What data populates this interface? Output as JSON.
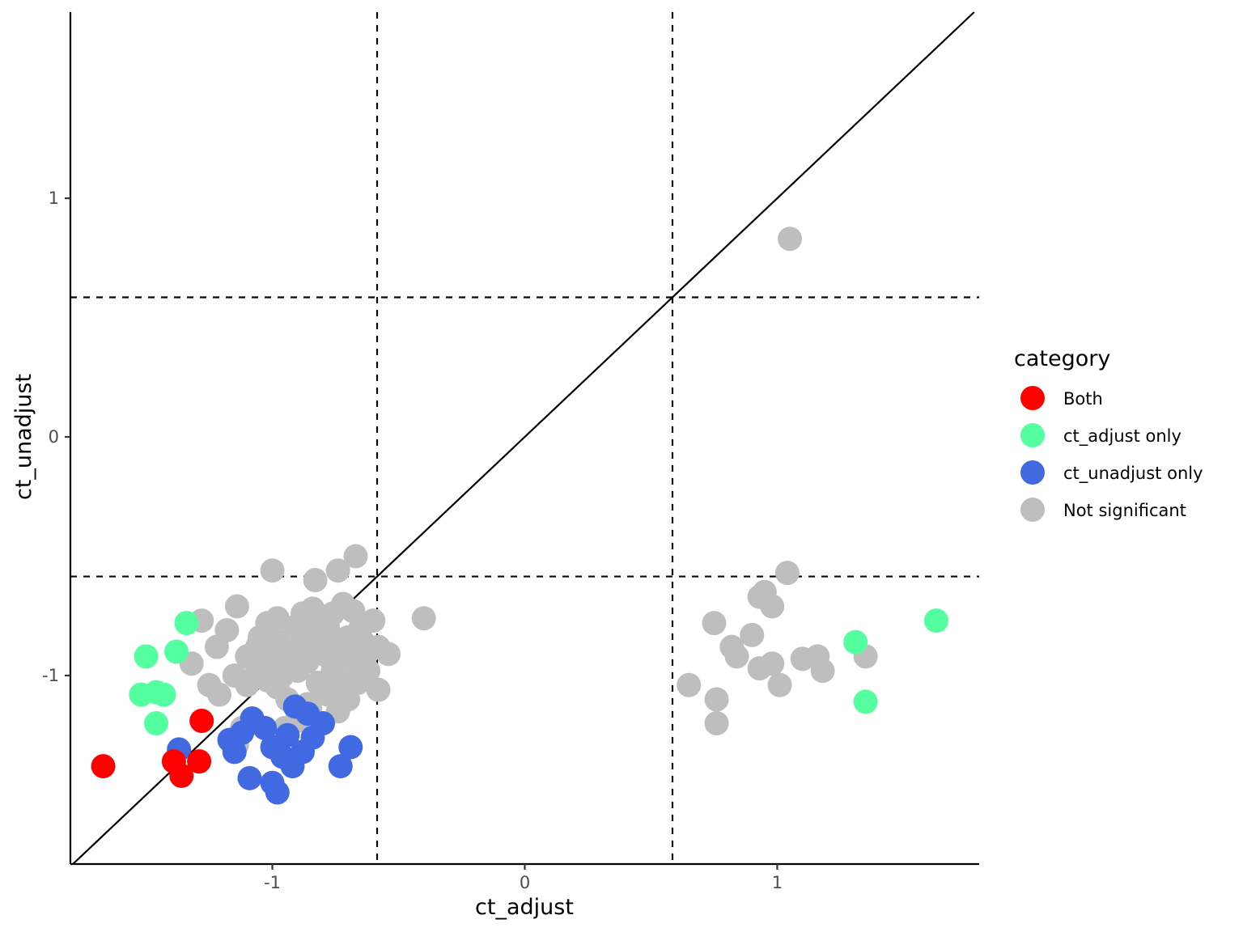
{
  "chart_data": {
    "type": "scatter",
    "xlabel": "ct_adjust",
    "ylabel": "ct_unadjust",
    "xlim": [
      -1.8,
      1.8
    ],
    "ylim": [
      -1.79,
      1.78
    ],
    "x_ticks": [
      -1,
      0,
      1
    ],
    "x_tick_labels": [
      "-1",
      "0",
      "1"
    ],
    "y_ticks": [
      -1,
      0,
      1
    ],
    "y_tick_labels": [
      "-1",
      "0",
      "1"
    ],
    "grid": false,
    "vlines": [
      -0.585,
      0.585
    ],
    "hlines": [
      -0.585,
      0.585
    ],
    "diagonal": "y = x",
    "legend": {
      "title": "category",
      "placement": "right",
      "entries": [
        {
          "name": "Both",
          "color": "#FF0000"
        },
        {
          "name": "ct_adjust only",
          "color": "#54FF9F"
        },
        {
          "name": "ct_unadjust only",
          "color": "#4169E1"
        },
        {
          "name": "Not significant",
          "color": "#BEBEBE"
        }
      ]
    },
    "series": [
      {
        "name": "Not significant",
        "color": "#BEBEBE",
        "points": [
          [
            -1.0,
            -0.56
          ],
          [
            -0.83,
            -0.6
          ],
          [
            -0.74,
            -0.56
          ],
          [
            -0.67,
            -0.5
          ],
          [
            -1.14,
            -0.71
          ],
          [
            -1.28,
            -0.77
          ],
          [
            -1.22,
            -0.88
          ],
          [
            -1.18,
            -0.81
          ],
          [
            -1.32,
            -0.95
          ],
          [
            -1.25,
            -1.04
          ],
          [
            -1.21,
            -1.08
          ],
          [
            -1.15,
            -1.0
          ],
          [
            -1.1,
            -0.92
          ],
          [
            -1.05,
            -0.84
          ],
          [
            -1.02,
            -0.78
          ],
          [
            -0.98,
            -0.76
          ],
          [
            -0.92,
            -0.8
          ],
          [
            -0.88,
            -0.74
          ],
          [
            -0.84,
            -0.72
          ],
          [
            -0.8,
            -0.78
          ],
          [
            -0.76,
            -0.74
          ],
          [
            -0.72,
            -0.7
          ],
          [
            -0.68,
            -0.73
          ],
          [
            -0.65,
            -0.8
          ],
          [
            -0.6,
            -0.77
          ],
          [
            -0.58,
            -0.88
          ],
          [
            -0.54,
            -0.91
          ],
          [
            -0.4,
            -0.76
          ],
          [
            -0.58,
            -1.06
          ],
          [
            -0.62,
            -0.98
          ],
          [
            -0.66,
            -1.03
          ],
          [
            -0.7,
            -1.1
          ],
          [
            -0.74,
            -1.15
          ],
          [
            -0.78,
            -1.08
          ],
          [
            -0.82,
            -1.03
          ],
          [
            -0.86,
            -1.12
          ],
          [
            -0.9,
            -1.16
          ],
          [
            -0.94,
            -1.1
          ],
          [
            -0.98,
            -1.05
          ],
          [
            -1.02,
            -1.02
          ],
          [
            -1.06,
            -0.97
          ],
          [
            -1.1,
            -1.04
          ],
          [
            -1.08,
            -1.18
          ],
          [
            -1.12,
            -1.22
          ],
          [
            -1.14,
            -1.29
          ],
          [
            -0.95,
            -1.22
          ],
          [
            -0.9,
            -1.19
          ],
          [
            -0.85,
            -1.14
          ],
          [
            -0.8,
            -1.2
          ],
          [
            -0.78,
            -0.92
          ],
          [
            -0.82,
            -0.88
          ],
          [
            -0.86,
            -0.94
          ],
          [
            -0.9,
            -0.98
          ],
          [
            -0.94,
            -0.9
          ],
          [
            -0.98,
            -0.86
          ],
          [
            -1.02,
            -0.92
          ],
          [
            -1.06,
            -0.88
          ],
          [
            -0.74,
            -0.86
          ],
          [
            -0.7,
            -0.92
          ],
          [
            -0.66,
            -0.96
          ],
          [
            -0.62,
            -0.9
          ],
          [
            -0.76,
            -0.98
          ],
          [
            -0.72,
            -1.02
          ],
          [
            -0.84,
            -0.82
          ],
          [
            -0.88,
            -0.86
          ],
          [
            -0.92,
            -0.93
          ],
          [
            -0.96,
            -0.97
          ],
          [
            -1.0,
            -0.95
          ],
          [
            -1.04,
            -1.0
          ],
          [
            -0.96,
            -1.0
          ],
          [
            -0.78,
            -0.8
          ],
          [
            -0.7,
            -0.84
          ],
          [
            -0.64,
            -0.86
          ],
          [
            1.05,
            0.83
          ],
          [
            1.04,
            -0.57
          ],
          [
            0.95,
            -0.65
          ],
          [
            0.93,
            -0.67
          ],
          [
            0.98,
            -0.71
          ],
          [
            0.75,
            -0.78
          ],
          [
            0.9,
            -0.83
          ],
          [
            0.82,
            -0.88
          ],
          [
            0.84,
            -0.92
          ],
          [
            0.93,
            -0.97
          ],
          [
            0.98,
            -0.95
          ],
          [
            1.1,
            -0.93
          ],
          [
            1.16,
            -0.92
          ],
          [
            1.18,
            -0.98
          ],
          [
            1.35,
            -0.92
          ],
          [
            0.65,
            -1.04
          ],
          [
            1.01,
            -1.04
          ],
          [
            0.76,
            -1.1
          ],
          [
            0.76,
            -1.2
          ]
        ]
      },
      {
        "name": "ct_unadjust only",
        "color": "#4169E1",
        "points": [
          [
            -1.17,
            -1.27
          ],
          [
            -1.15,
            -1.32
          ],
          [
            -1.12,
            -1.24
          ],
          [
            -1.08,
            -1.18
          ],
          [
            -1.03,
            -1.22
          ],
          [
            -1.0,
            -1.3
          ],
          [
            -0.96,
            -1.34
          ],
          [
            -0.92,
            -1.38
          ],
          [
            -0.88,
            -1.32
          ],
          [
            -0.84,
            -1.26
          ],
          [
            -0.8,
            -1.2
          ],
          [
            -0.91,
            -1.13
          ],
          [
            -0.86,
            -1.16
          ],
          [
            -0.69,
            -1.3
          ],
          [
            -0.73,
            -1.38
          ],
          [
            -1.09,
            -1.43
          ],
          [
            -1.0,
            -1.45
          ],
          [
            -0.98,
            -1.49
          ],
          [
            -1.37,
            -1.31
          ],
          [
            -0.94,
            -1.25
          ]
        ]
      },
      {
        "name": "ct_adjust only",
        "color": "#54FF9F",
        "points": [
          [
            -1.34,
            -0.78
          ],
          [
            -1.38,
            -0.9
          ],
          [
            -1.5,
            -0.92
          ],
          [
            -1.52,
            -1.08
          ],
          [
            -1.46,
            -1.07
          ],
          [
            -1.43,
            -1.08
          ],
          [
            -1.46,
            -1.2
          ],
          [
            1.63,
            -0.77
          ],
          [
            1.31,
            -0.86
          ],
          [
            1.35,
            -1.11
          ]
        ]
      },
      {
        "name": "Both",
        "color": "#FF0000",
        "points": [
          [
            -1.67,
            -1.38
          ],
          [
            -1.39,
            -1.36
          ],
          [
            -1.36,
            -1.42
          ],
          [
            -1.29,
            -1.36
          ],
          [
            -1.28,
            -1.19
          ]
        ]
      }
    ]
  }
}
